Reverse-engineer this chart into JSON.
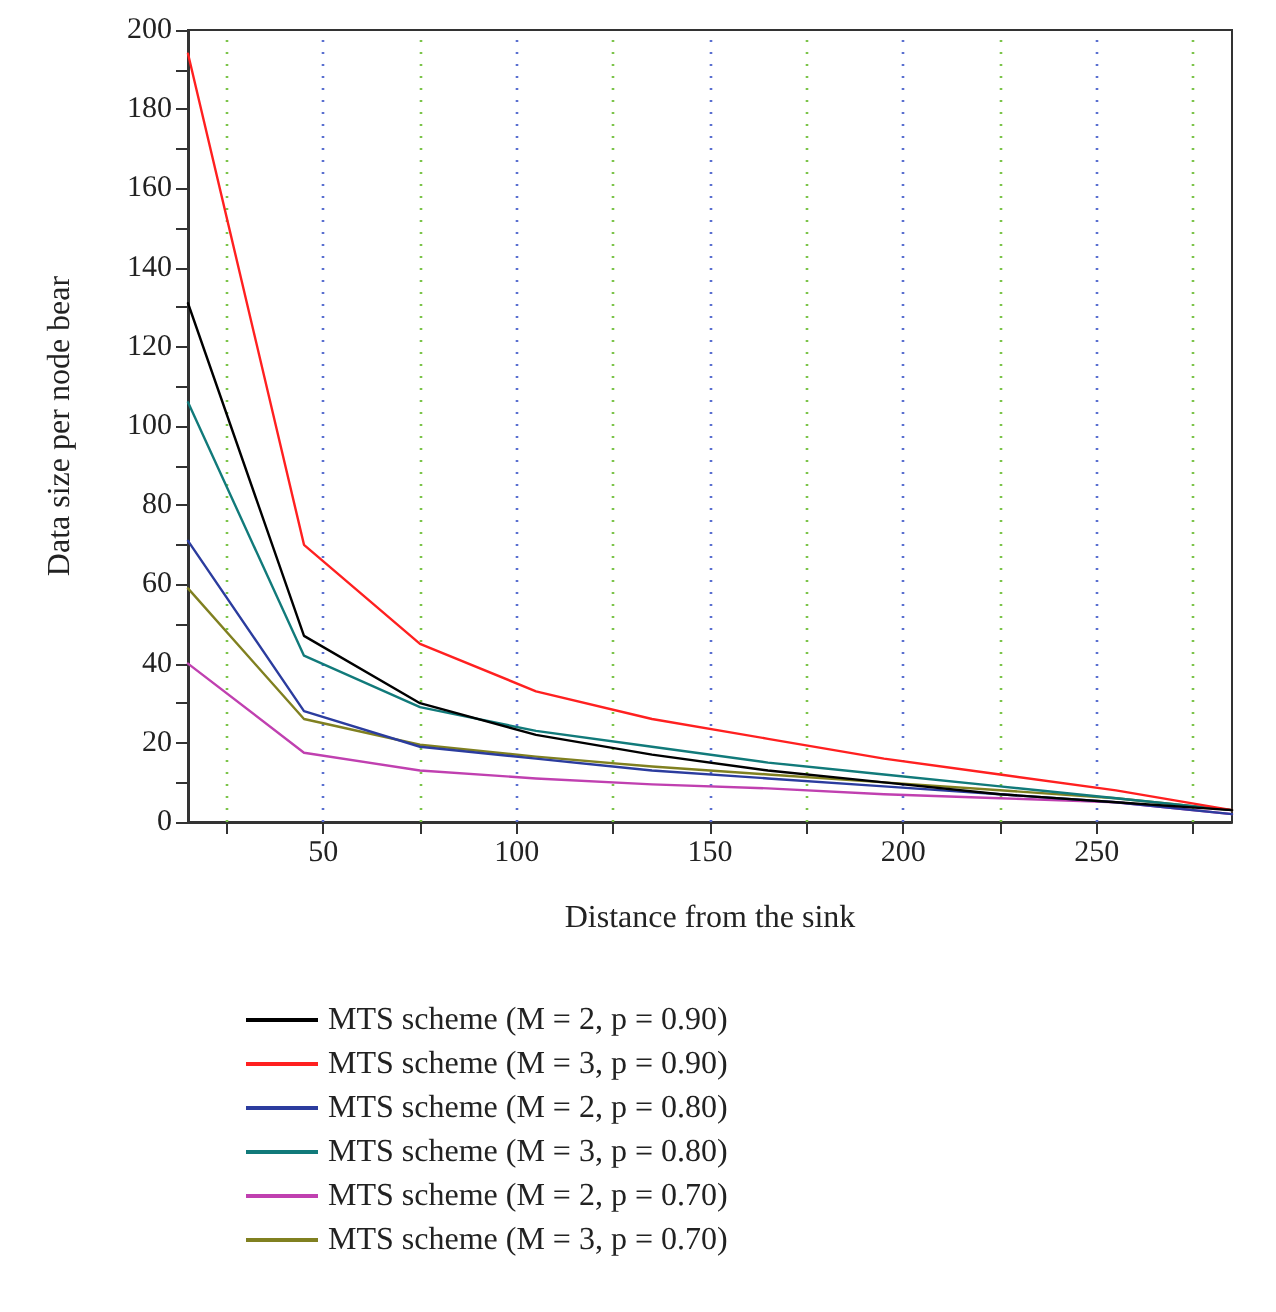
{
  "chart_data": {
    "type": "line",
    "xlabel": "Distance from the sink",
    "ylabel": "Data size per node bear",
    "x": [
      15,
      45,
      75,
      105,
      135,
      165,
      195,
      225,
      255,
      285
    ],
    "series": [
      {
        "name": "MTS scheme (M = 2, p = 0.90)",
        "color": "#000000",
        "values": [
          131,
          47,
          30,
          22,
          17,
          13,
          10,
          7,
          5,
          3
        ]
      },
      {
        "name": "MTS scheme (M = 3, p = 0.90)",
        "color": "#ff2020",
        "values": [
          194,
          70,
          45,
          33,
          26,
          21,
          16,
          12,
          8,
          3
        ]
      },
      {
        "name": "MTS scheme (M = 2, p = 0.80)",
        "color": "#2b3c9e",
        "values": [
          71,
          28,
          19,
          16,
          13,
          11,
          9,
          7,
          5,
          2
        ]
      },
      {
        "name": "MTS scheme (M = 3, p = 0.80)",
        "color": "#117a7a",
        "values": [
          106,
          42,
          29,
          23,
          19,
          15,
          12,
          9,
          6,
          3
        ]
      },
      {
        "name": "MTS scheme (M = 2, p = 0.70)",
        "color": "#c040b0",
        "values": [
          40,
          17.5,
          13,
          11,
          9.5,
          8.5,
          7,
          6,
          5,
          2
        ]
      },
      {
        "name": "MTS scheme (M = 3, p = 0.70)",
        "color": "#808020",
        "values": [
          59,
          26,
          19.5,
          16.5,
          14,
          12,
          10,
          8,
          6,
          3
        ]
      }
    ],
    "xlim": [
      15,
      285
    ],
    "xticks": [
      {
        "value": 25,
        "label": null
      },
      50,
      {
        "value": 75,
        "label": null
      },
      100,
      {
        "value": 125,
        "label": null
      },
      150,
      {
        "value": 175,
        "label": null
      },
      200,
      {
        "value": 225,
        "label": null
      },
      250,
      {
        "value": 275,
        "label": null
      }
    ],
    "ylim": [
      0,
      200
    ],
    "yticks": [
      0,
      {
        "value": 10,
        "label": null
      },
      20,
      {
        "value": 30,
        "label": null
      },
      40,
      {
        "value": 50,
        "label": null
      },
      60,
      {
        "value": 70,
        "label": null
      },
      80,
      {
        "value": 90,
        "label": null
      },
      100,
      {
        "value": 110,
        "label": null
      },
      120,
      {
        "value": 130,
        "label": null
      },
      140,
      {
        "value": 150,
        "label": null
      },
      160,
      {
        "value": 170,
        "label": null
      },
      180,
      {
        "value": 190,
        "label": null
      },
      200
    ],
    "grid": "x",
    "legend": "bottom",
    "marker": "none",
    "line_style": "solid"
  }
}
